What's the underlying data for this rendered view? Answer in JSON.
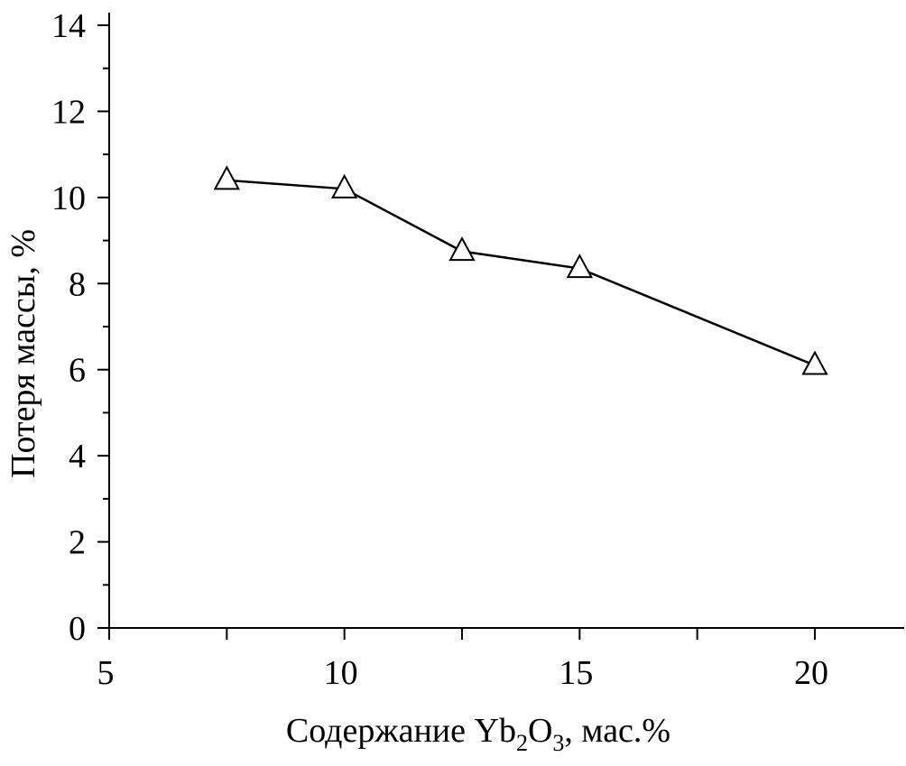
{
  "chart_data": {
    "type": "line",
    "title": "",
    "xlabel": {
      "main": "Содержание Yb",
      "sub1": "2",
      "mid": "O",
      "sub2": "3",
      "tail": ", мас.%"
    },
    "ylabel": "Потеря массы, %",
    "xlim": [
      5,
      22
    ],
    "ylim": [
      0,
      14
    ],
    "x_ticks": [
      5,
      10,
      15,
      20
    ],
    "x_minor_ticks": [
      7.5,
      12.5,
      17.5
    ],
    "y_ticks": [
      0,
      2,
      4,
      6,
      8,
      10,
      12,
      14
    ],
    "y_minor_ticks": [
      1,
      3,
      5,
      7,
      9,
      11,
      13
    ],
    "grid": false,
    "series": [
      {
        "marker": "open-triangle",
        "x": [
          7.5,
          10,
          12.5,
          15,
          20
        ],
        "y": [
          10.4,
          10.2,
          8.75,
          8.35,
          6.1
        ]
      }
    ]
  }
}
